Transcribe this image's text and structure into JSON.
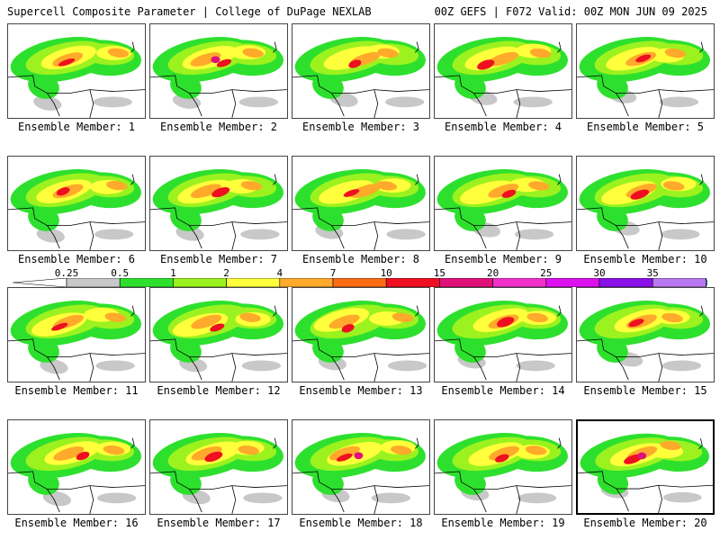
{
  "header": {
    "title_left": "Supercell Composite Parameter | College of DuPage NEXLAB",
    "title_right": "00Z GEFS | F072 Valid: 00Z MON JUN 09 2025"
  },
  "colorbar": {
    "levels": [
      "0.25",
      "0.5",
      "1",
      "2",
      "4",
      "7",
      "10",
      "15",
      "20",
      "25",
      "30",
      "35"
    ],
    "colors": [
      "#c8c8c8",
      "#2ee02e",
      "#9cf21e",
      "#ffff3c",
      "#ffaa2a",
      "#ff6a14",
      "#ee1020",
      "#e0107a",
      "#f030c8",
      "#dd10ee",
      "#8a10e8",
      "#b878f0",
      "#30d8ee"
    ]
  },
  "members": [
    {
      "label": "Ensemble Member: 1"
    },
    {
      "label": "Ensemble Member: 2"
    },
    {
      "label": "Ensemble Member: 3"
    },
    {
      "label": "Ensemble Member: 4"
    },
    {
      "label": "Ensemble Member: 5"
    },
    {
      "label": "Ensemble Member: 6"
    },
    {
      "label": "Ensemble Member: 7"
    },
    {
      "label": "Ensemble Member: 8"
    },
    {
      "label": "Ensemble Member: 9"
    },
    {
      "label": "Ensemble Member: 10"
    },
    {
      "label": "Ensemble Member: 11"
    },
    {
      "label": "Ensemble Member: 12"
    },
    {
      "label": "Ensemble Member: 13"
    },
    {
      "label": "Ensemble Member: 14"
    },
    {
      "label": "Ensemble Member: 15"
    },
    {
      "label": "Ensemble Member: 16"
    },
    {
      "label": "Ensemble Member: 17"
    },
    {
      "label": "Ensemble Member: 18"
    },
    {
      "label": "Ensemble Member: 19"
    },
    {
      "label": "Ensemble Member: 20"
    }
  ]
}
